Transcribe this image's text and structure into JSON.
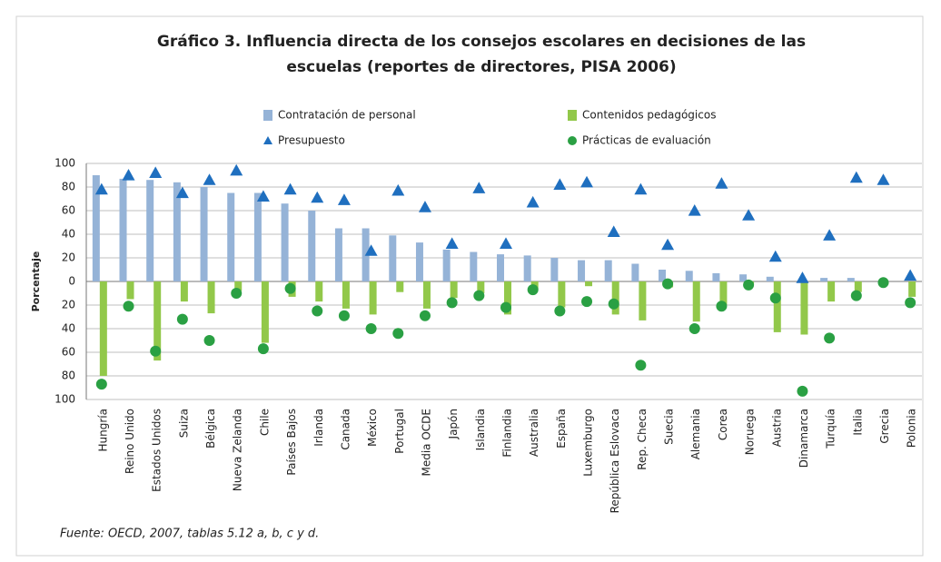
{
  "chart_data": {
    "type": "bar",
    "title": [
      "Gráfico 3.  Influencia directa de los consejos escolares en decisiones de las",
      "escuelas (reportes de directores, PISA 2006)"
    ],
    "ylabel": "Porcentaje",
    "source": "Fuente: OECD, 2007, tablas 5.12 a, b, c y d.",
    "categories": [
      "Hungría",
      "Reino Unido",
      "Estados Unidos",
      "Suiza",
      "Bélgica",
      "Nueva Zelanda",
      "Chile",
      "Países Bajos",
      "Irlanda",
      "Canada",
      "México",
      "Portugal",
      "Media OCDE",
      "Japón",
      "Islandia",
      "Finlandia",
      "Australia",
      "España",
      "Luxemburgo",
      "República Eslovaca",
      "Rep. Checa",
      "Suecia",
      "Alemania",
      "Corea",
      "Noruega",
      "Austria",
      "Dinamarca",
      "Turquía",
      "Italia",
      "Grecia",
      "Polonia"
    ],
    "series": [
      {
        "name": "Contratación de personal",
        "color": "#95b3d7",
        "marker": "bar",
        "values": [
          90,
          87,
          86,
          84,
          80,
          75,
          75,
          66,
          60,
          45,
          45,
          39,
          33,
          27,
          25,
          23,
          22,
          20,
          18,
          18,
          15,
          10,
          9,
          7,
          6,
          4,
          0,
          3,
          3,
          0,
          0
        ]
      },
      {
        "name": "Contenidos pedagógicos",
        "color": "#92c84a",
        "marker": "bar",
        "values": [
          -80,
          -15,
          -67,
          -17,
          -27,
          -8,
          -52,
          -13,
          -17,
          -23,
          -28,
          -9,
          -23,
          -14,
          -10,
          -28,
          -7,
          -22,
          -4,
          -28,
          -33,
          -5,
          -34,
          -20,
          -3,
          -43,
          -45,
          -17,
          -9,
          -2,
          -13
        ]
      },
      {
        "name": "Presupuesto",
        "color": "#1f6fbf",
        "marker": "triangle",
        "values": [
          78,
          90,
          92,
          75,
          86,
          94,
          72,
          78,
          71,
          69,
          26,
          77,
          63,
          32,
          79,
          32,
          67,
          82,
          84,
          42,
          78,
          31,
          60,
          83,
          56,
          21,
          3,
          39,
          88,
          86,
          5
        ]
      },
      {
        "name": "Prácticas de evaluación",
        "color": "#2aa043",
        "marker": "circle",
        "values": [
          -87,
          -21,
          -59,
          -32,
          -50,
          -10,
          -57,
          -6,
          -25,
          -29,
          -40,
          -44,
          -29,
          -18,
          -12,
          -22,
          -7,
          -25,
          -17,
          -19,
          -71,
          -2,
          -40,
          -21,
          -3,
          -14,
          -93,
          -48,
          -12,
          -1,
          -18
        ]
      }
    ],
    "ylim": [
      -100,
      100
    ],
    "yticks": [
      100,
      80,
      60,
      40,
      20,
      0,
      {
        "value": -20,
        "label": "20"
      },
      {
        "value": -40,
        "label": "40"
      },
      {
        "value": -60,
        "label": "60"
      },
      {
        "value": -80,
        "label": "80"
      },
      {
        "value": -100,
        "label": "100"
      }
    ],
    "grid": true
  }
}
